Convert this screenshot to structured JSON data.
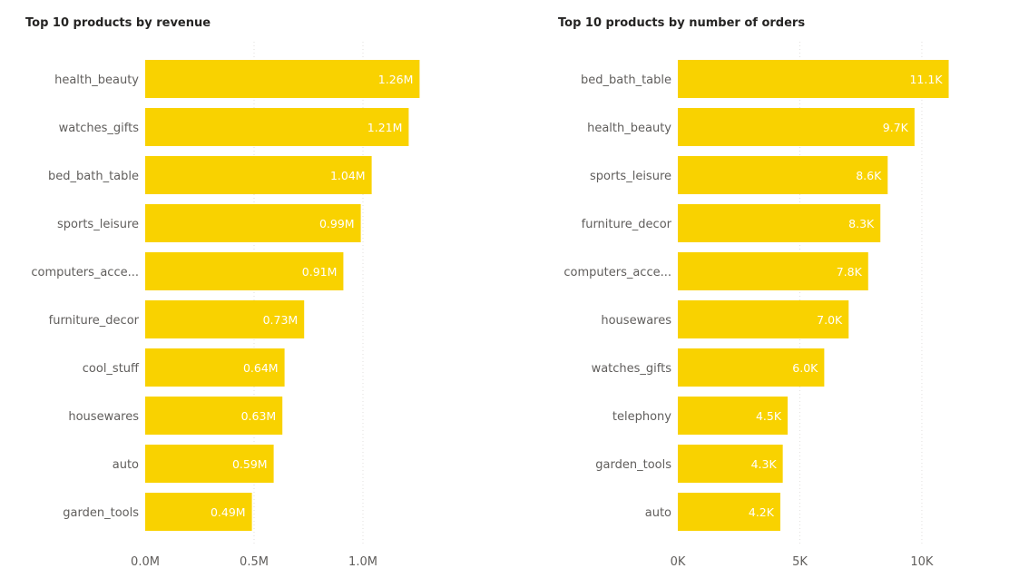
{
  "chart_data": [
    {
      "type": "bar",
      "orientation": "horizontal",
      "title": "Top 10 products by revenue",
      "categories": [
        "health_beauty",
        "watches_gifts",
        "bed_bath_table",
        "sports_leisure",
        "computers_acce...",
        "furniture_decor",
        "cool_stuff",
        "housewares",
        "auto",
        "garden_tools"
      ],
      "values": [
        1.26,
        1.21,
        1.04,
        0.99,
        0.91,
        0.73,
        0.64,
        0.63,
        0.59,
        0.49
      ],
      "data_labels": [
        "1.26M",
        "1.21M",
        "1.04M",
        "0.99M",
        "0.91M",
        "0.73M",
        "0.64M",
        "0.63M",
        "0.59M",
        "0.49M"
      ],
      "x_ticks": [
        0,
        0.5,
        1.0
      ],
      "x_tick_labels": [
        "0.0M",
        "0.5M",
        "1.0M"
      ],
      "xlim": [
        0,
        1.5
      ],
      "grid": true,
      "bar_color": "#F9D200"
    },
    {
      "type": "bar",
      "orientation": "horizontal",
      "title": "Top 10 products by number of orders",
      "categories": [
        "bed_bath_table",
        "health_beauty",
        "sports_leisure",
        "furniture_decor",
        "computers_acce...",
        "housewares",
        "watches_gifts",
        "telephony",
        "garden_tools",
        "auto"
      ],
      "values": [
        11.1,
        9.7,
        8.6,
        8.3,
        7.8,
        7.0,
        6.0,
        4.5,
        4.3,
        4.2
      ],
      "data_labels": [
        "11.1K",
        "9.7K",
        "8.6K",
        "8.3K",
        "7.8K",
        "7.0K",
        "6.0K",
        "4.5K",
        "4.3K",
        "4.2K"
      ],
      "x_ticks": [
        0,
        5,
        10
      ],
      "x_tick_labels": [
        "0K",
        "5K",
        "10K"
      ],
      "xlim": [
        0,
        13.2
      ],
      "grid": true,
      "bar_color": "#F9D200"
    }
  ]
}
